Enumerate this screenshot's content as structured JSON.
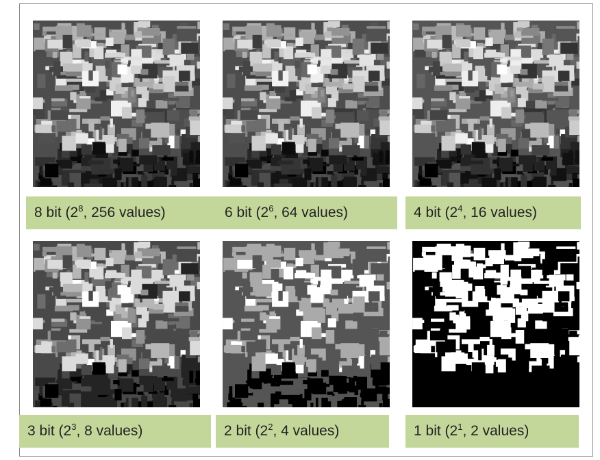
{
  "panels": [
    {
      "label": {
        "base": "8 bit (2",
        "exponent": "8",
        "rest": ", 256 values)"
      }
    },
    {
      "label": {
        "base": "6 bit (2",
        "exponent": "6",
        "rest": ", 64 values)"
      }
    },
    {
      "label": {
        "base": "4 bit (2",
        "exponent": "4",
        "rest": ", 16 values)"
      }
    },
    {
      "label": {
        "base": "3 bit (2",
        "exponent": "3",
        "rest": ", 8 values)"
      }
    },
    {
      "label": {
        "base": "2 bit (2",
        "exponent": "2",
        "rest": ", 4 values)"
      }
    },
    {
      "label": {
        "base": "1 bit (2",
        "exponent": "1",
        "rest": ", 2 values)"
      }
    }
  ]
}
